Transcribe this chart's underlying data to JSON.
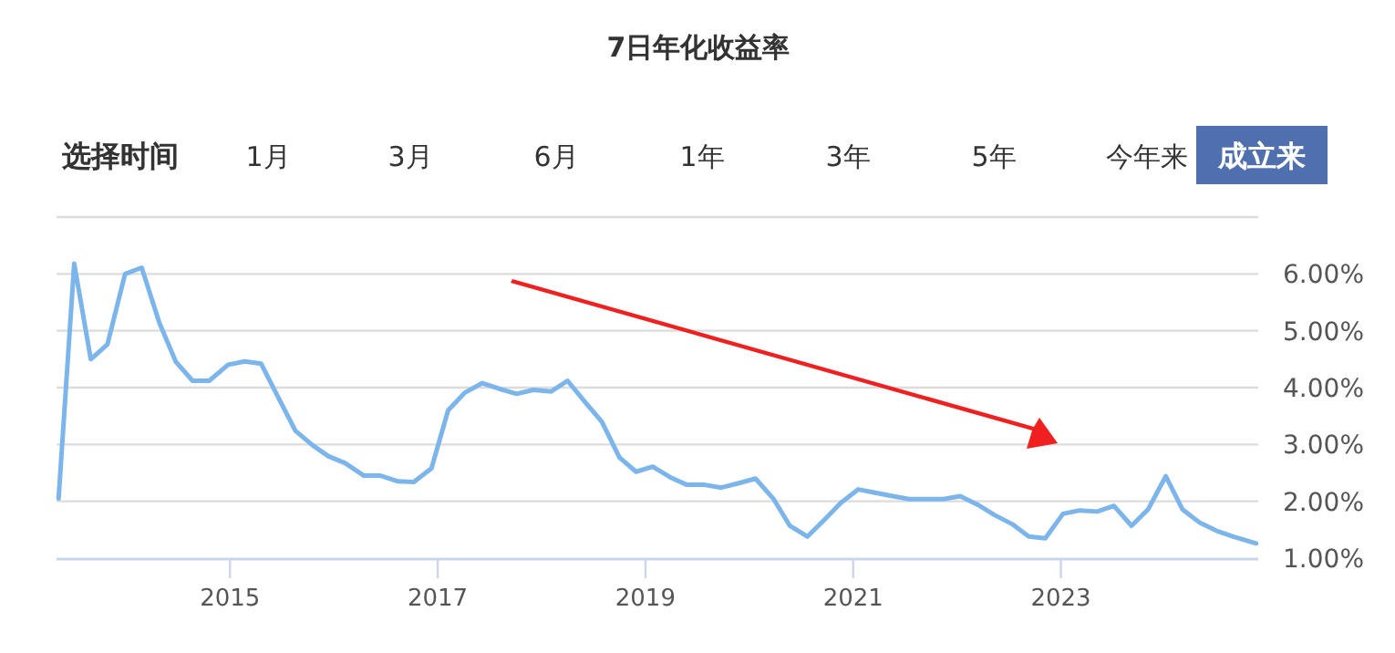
{
  "chart_data": {
    "type": "line",
    "title": "7日年化收益率",
    "annotations": [
      "选择时间",
      "1月",
      "3月",
      "6月",
      "1年",
      "3年",
      "5年",
      "今年来",
      "成立来"
    ],
    "x": [
      2013.35,
      2013.5,
      2013.66,
      2013.82,
      2013.99,
      2014.15,
      2014.32,
      2014.48,
      2014.64,
      2014.8,
      2014.98,
      2015.14,
      2015.3,
      2015.47,
      2015.63,
      2015.8,
      2015.95,
      2016.11,
      2016.29,
      2016.45,
      2016.62,
      2016.77,
      2016.94,
      2017.1,
      2017.26,
      2017.43,
      2017.59,
      2017.76,
      2017.92,
      2018.09,
      2018.25,
      2018.43,
      2018.58,
      2018.75,
      2018.91,
      2019.07,
      2019.24,
      2019.4,
      2019.57,
      2019.73,
      2019.9,
      2020.06,
      2020.23,
      2020.39,
      2020.56,
      2020.72,
      2020.88,
      2021.05,
      2021.21,
      2021.38,
      2021.54,
      2021.71,
      2021.87,
      2022.03,
      2022.2,
      2022.36,
      2022.53,
      2022.69,
      2022.85,
      2023.02,
      2023.18,
      2023.35,
      2023.51,
      2023.68,
      2023.84,
      2024.01,
      2024.17,
      2024.34,
      2024.5,
      2024.66,
      2024.88
    ],
    "series": [
      {
        "color": "#7cb5ec",
        "values": [
          2.05,
          6.18,
          4.5,
          4.76,
          6.0,
          6.11,
          5.14,
          4.45,
          4.12,
          4.12,
          4.4,
          4.46,
          4.42,
          3.81,
          3.24,
          2.98,
          2.79,
          2.67,
          2.45,
          2.45,
          2.35,
          2.34,
          2.58,
          3.6,
          3.91,
          4.08,
          3.98,
          3.89,
          3.96,
          3.93,
          4.12,
          3.72,
          3.4,
          2.77,
          2.52,
          2.61,
          2.42,
          2.29,
          2.29,
          2.24,
          2.32,
          2.4,
          2.05,
          1.57,
          1.38,
          1.67,
          1.97,
          2.21,
          2.15,
          2.09,
          2.04,
          2.04,
          2.04,
          2.09,
          1.94,
          1.76,
          1.6,
          1.38,
          1.35,
          1.78,
          1.84,
          1.82,
          1.92,
          1.57,
          1.86,
          2.44,
          1.86,
          1.62,
          1.48,
          1.38,
          1.26
        ]
      }
    ],
    "xlim": [
      2013.33,
      2024.9
    ],
    "xticks": [
      2015,
      2017,
      2019,
      2021,
      2023
    ],
    "ylim": [
      1,
      7
    ],
    "yticks": [
      {
        "value": 1,
        "label": "1.00%"
      },
      {
        "value": 2,
        "label": "2.00%"
      },
      {
        "value": 3,
        "label": "3.00%"
      },
      {
        "value": 4,
        "label": "4.00%"
      },
      {
        "value": 5,
        "label": "5.00%"
      },
      {
        "value": 6,
        "label": "6.00%"
      },
      {
        "value": 7,
        "label": null
      }
    ],
    "grid": "y"
  }
}
